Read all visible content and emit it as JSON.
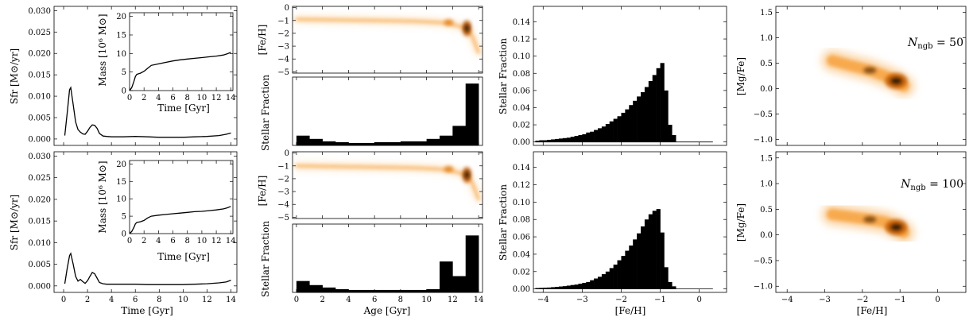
{
  "chart_data": [
    {
      "id": "row1-sfr",
      "type": "line",
      "xlabel": "",
      "ylabel": "Sfr [M⊙/yr]",
      "xlim": [
        -0.8,
        14.5
      ],
      "ylim": [
        -0.0015,
        0.031
      ],
      "xticks": [
        0,
        2,
        4,
        6,
        8,
        10,
        12,
        14
      ],
      "yticks": [
        "0.000",
        "0.005",
        "0.010",
        "0.015",
        "0.020",
        "0.025",
        "0.030"
      ],
      "series": [
        {
          "x": [
            0.1,
            0.3,
            0.5,
            0.6,
            0.8,
            1.0,
            1.2,
            1.4,
            1.6,
            1.8,
            2.0,
            2.2,
            2.4,
            2.6,
            2.8,
            3.0,
            3.3,
            3.6,
            4.0,
            5,
            6,
            7,
            8,
            9,
            10,
            11,
            12,
            13,
            13.6,
            14.0
          ],
          "y": [
            0.0008,
            0.006,
            0.0115,
            0.012,
            0.008,
            0.004,
            0.0022,
            0.0016,
            0.0012,
            0.0011,
            0.0018,
            0.0027,
            0.0033,
            0.0032,
            0.0025,
            0.0013,
            0.0007,
            0.0006,
            0.0005,
            0.0005,
            0.0006,
            0.0005,
            0.0004,
            0.0004,
            0.0004,
            0.0005,
            0.0006,
            0.0008,
            0.0011,
            0.0014
          ]
        }
      ]
    },
    {
      "id": "row1-mass-inset",
      "type": "line",
      "title_note": "Mass [10^6 M⊙]",
      "xlabel": "Time [Gyr]",
      "ylabel": "Mass [10⁶ M⊙]",
      "xlim": [
        0,
        14.3
      ],
      "ylim": [
        0,
        21
      ],
      "xticks": [
        0,
        2,
        4,
        6,
        8,
        10,
        12,
        14
      ],
      "yticks": [
        0,
        5,
        10,
        15,
        20
      ],
      "series": [
        {
          "x": [
            0.0,
            0.3,
            0.6,
            0.8,
            1.0,
            1.5,
            2.0,
            2.5,
            3.0,
            4,
            5,
            6,
            7,
            8,
            9,
            10,
            11,
            12,
            13,
            13.5,
            14.0
          ],
          "y": [
            0.0,
            0.8,
            2.5,
            3.8,
            4.4,
            4.7,
            5.2,
            6.0,
            6.8,
            7.2,
            7.6,
            8.0,
            8.3,
            8.5,
            8.7,
            8.9,
            9.1,
            9.3,
            9.6,
            9.9,
            10.3
          ]
        }
      ]
    },
    {
      "id": "row2-sfr",
      "type": "line",
      "xlabel": "Time [Gyr]",
      "ylabel": "Sfr [M⊙/yr]",
      "xlim": [
        -0.8,
        14.5
      ],
      "ylim": [
        -0.0015,
        0.031
      ],
      "xticks": [
        0,
        2,
        4,
        6,
        8,
        10,
        12,
        14
      ],
      "yticks": [
        "0.000",
        "0.005",
        "0.010",
        "0.015",
        "0.020",
        "0.025",
        "0.030"
      ],
      "series": [
        {
          "x": [
            0.1,
            0.3,
            0.5,
            0.6,
            0.8,
            1.0,
            1.2,
            1.4,
            1.6,
            1.8,
            2.0,
            2.2,
            2.4,
            2.6,
            2.8,
            3.0,
            3.3,
            3.6,
            4.0,
            5,
            6,
            7,
            8,
            9,
            10,
            11,
            12,
            13,
            13.6,
            14.0
          ],
          "y": [
            0.0005,
            0.004,
            0.007,
            0.0075,
            0.005,
            0.0022,
            0.0011,
            0.0015,
            0.001,
            0.0006,
            0.0012,
            0.0022,
            0.0031,
            0.0028,
            0.0018,
            0.0008,
            0.0005,
            0.0004,
            0.0004,
            0.0004,
            0.0004,
            0.0003,
            0.0003,
            0.0003,
            0.0003,
            0.0004,
            0.0005,
            0.0007,
            0.0009,
            0.0013
          ]
        }
      ]
    },
    {
      "id": "row2-mass-inset",
      "type": "line",
      "xlabel": "Time [Gyr]",
      "ylabel": "Mass [10⁶ M⊙]",
      "xlim": [
        0,
        14.3
      ],
      "ylim": [
        0,
        21
      ],
      "xticks": [
        0,
        2,
        4,
        6,
        8,
        10,
        12,
        14
      ],
      "yticks": [
        0,
        5,
        10,
        15,
        20
      ],
      "series": [
        {
          "x": [
            0.0,
            0.3,
            0.6,
            0.8,
            1.0,
            1.5,
            2.0,
            2.5,
            3.0,
            4,
            5,
            6,
            7,
            8,
            9,
            10,
            11,
            12,
            13,
            13.5,
            14.0
          ],
          "y": [
            0.0,
            0.6,
            1.8,
            2.8,
            3.2,
            3.4,
            3.8,
            4.5,
            5.0,
            5.3,
            5.5,
            5.7,
            5.9,
            6.1,
            6.3,
            6.4,
            6.6,
            6.8,
            7.1,
            7.4,
            7.8
          ]
        }
      ]
    },
    {
      "id": "row1-age-feh",
      "type": "heatmap",
      "xlabel": "",
      "ylabel": "[Fe/H]",
      "xlim": [
        -0.3,
        14.3
      ],
      "ylim": [
        -5.1,
        0.1
      ],
      "yticks": [
        0,
        -1,
        -2,
        -3,
        -4,
        -5
      ],
      "xticks": [
        0,
        2,
        4,
        6,
        8,
        10,
        12,
        14
      ],
      "ridge": {
        "x": [
          0,
          3,
          6,
          9,
          11,
          12,
          13,
          13.5,
          14
        ],
        "feh": [
          -0.9,
          -0.95,
          -1.0,
          -1.05,
          -1.15,
          -1.3,
          -1.6,
          -2.2,
          -3.5
        ]
      }
    },
    {
      "id": "row1-age-hist",
      "type": "bar",
      "xlabel": "",
      "ylabel": "Stellar Fraction",
      "xlim": [
        -0.3,
        14.3
      ],
      "ylim": [
        0,
        0.42
      ],
      "xticks": [
        0,
        2,
        4,
        6,
        8,
        10,
        12,
        14
      ],
      "bin_edges": [
        0,
        1,
        2,
        3,
        4,
        5,
        6,
        7,
        8,
        9,
        10,
        11,
        12,
        13,
        14
      ],
      "values": [
        0.06,
        0.04,
        0.025,
        0.02,
        0.015,
        0.015,
        0.02,
        0.02,
        0.025,
        0.025,
        0.04,
        0.06,
        0.12,
        0.38
      ]
    },
    {
      "id": "row2-age-feh",
      "type": "heatmap",
      "xlabel": "",
      "ylabel": "[Fe/H]",
      "xlim": [
        -0.3,
        14.3
      ],
      "ylim": [
        -5.1,
        0.1
      ],
      "yticks": [
        0,
        -1,
        -2,
        -3,
        -4,
        -5
      ],
      "xticks": [
        0,
        2,
        4,
        6,
        8,
        10,
        12,
        14
      ],
      "ridge": {
        "x": [
          0,
          3,
          6,
          9,
          11,
          12,
          13,
          13.5,
          14
        ],
        "feh": [
          -1.0,
          -1.05,
          -1.1,
          -1.15,
          -1.25,
          -1.4,
          -1.7,
          -2.3,
          -3.6
        ]
      }
    },
    {
      "id": "row2-age-hist",
      "type": "bar",
      "xlabel": "Age [Gyr]",
      "ylabel": "Stellar Fraction",
      "xlim": [
        -0.3,
        14.3
      ],
      "ylim": [
        0,
        0.42
      ],
      "xticks": [
        0,
        2,
        4,
        6,
        8,
        10,
        12,
        14
      ],
      "bin_edges": [
        0,
        1,
        2,
        3,
        4,
        5,
        6,
        7,
        8,
        9,
        10,
        11,
        12,
        13,
        14
      ],
      "values": [
        0.07,
        0.045,
        0.03,
        0.02,
        0.015,
        0.015,
        0.015,
        0.015,
        0.015,
        0.015,
        0.02,
        0.19,
        0.1,
        0.35
      ]
    },
    {
      "id": "row1-mdf",
      "type": "bar",
      "xlabel": "",
      "ylabel": "Stellar Fraction",
      "xlim": [
        -4.25,
        0.7
      ],
      "ylim": [
        -0.004,
        0.158
      ],
      "xticks": [
        -4,
        -3,
        -2,
        -1,
        0
      ],
      "yticks": [
        "0.00",
        "0.02",
        "0.04",
        "0.06",
        "0.08",
        "0.10",
        "0.12",
        "0.14"
      ],
      "bin_edges": [
        -4.2,
        -4.1,
        -4.0,
        -3.9,
        -3.8,
        -3.7,
        -3.6,
        -3.5,
        -3.4,
        -3.3,
        -3.2,
        -3.1,
        -3.0,
        -2.9,
        -2.8,
        -2.7,
        -2.6,
        -2.5,
        -2.4,
        -2.3,
        -2.2,
        -2.1,
        -2.0,
        -1.9,
        -1.8,
        -1.7,
        -1.6,
        -1.5,
        -1.4,
        -1.3,
        -1.2,
        -1.1,
        -1.0,
        -0.9,
        -0.8,
        -0.7,
        -0.6
      ],
      "values": [
        0.0015,
        0.002,
        0.002,
        0.0025,
        0.003,
        0.0035,
        0.004,
        0.0045,
        0.005,
        0.006,
        0.007,
        0.008,
        0.009,
        0.011,
        0.012,
        0.014,
        0.016,
        0.018,
        0.021,
        0.024,
        0.027,
        0.03,
        0.034,
        0.038,
        0.043,
        0.048,
        0.053,
        0.058,
        0.064,
        0.071,
        0.078,
        0.086,
        0.092,
        0.06,
        0.02,
        0.008
      ]
    },
    {
      "id": "row2-mdf",
      "type": "bar",
      "xlabel": "[Fe/H]",
      "ylabel": "Stellar Fraction",
      "xlim": [
        -4.25,
        0.7
      ],
      "ylim": [
        -0.004,
        0.158
      ],
      "xticks": [
        -4,
        -3,
        -2,
        -1,
        0
      ],
      "yticks": [
        "0.00",
        "0.02",
        "0.04",
        "0.06",
        "0.08",
        "0.10",
        "0.12",
        "0.14"
      ],
      "bin_edges": [
        -4.2,
        -4.1,
        -4.0,
        -3.9,
        -3.8,
        -3.7,
        -3.6,
        -3.5,
        -3.4,
        -3.3,
        -3.2,
        -3.1,
        -3.0,
        -2.9,
        -2.8,
        -2.7,
        -2.6,
        -2.5,
        -2.4,
        -2.3,
        -2.2,
        -2.1,
        -2.0,
        -1.9,
        -1.8,
        -1.7,
        -1.6,
        -1.5,
        -1.4,
        -1.3,
        -1.2,
        -1.1,
        -1.0,
        -0.9,
        -0.8,
        -0.7,
        -0.6
      ],
      "values": [
        0.001,
        0.0012,
        0.0014,
        0.0016,
        0.002,
        0.0024,
        0.0028,
        0.0032,
        0.0038,
        0.0045,
        0.005,
        0.006,
        0.007,
        0.008,
        0.01,
        0.012,
        0.014,
        0.017,
        0.02,
        0.024,
        0.028,
        0.033,
        0.038,
        0.044,
        0.05,
        0.057,
        0.064,
        0.072,
        0.08,
        0.086,
        0.09,
        0.092,
        0.065,
        0.025,
        0.008,
        0.003
      ]
    },
    {
      "id": "row1-mgfe",
      "type": "heatmap",
      "xlabel": "",
      "ylabel": "[Mg/Fe]",
      "annotation": "Nngb = 50",
      "xlim": [
        -4.3,
        0.75
      ],
      "ylim": [
        -1.12,
        1.62
      ],
      "xticks": [
        -4,
        -3,
        -2,
        -1,
        0
      ],
      "yticks": [
        "−1.0",
        "−0.5",
        "0.0",
        "0.5",
        "1.0",
        "1.5"
      ],
      "ridge": {
        "x": [
          -2.8,
          -2.3,
          -1.8,
          -1.4,
          -1.1,
          -0.9
        ],
        "y": [
          0.55,
          0.45,
          0.36,
          0.25,
          0.15,
          0.05
        ]
      }
    },
    {
      "id": "row2-mgfe",
      "type": "heatmap",
      "xlabel": "[Fe/H]",
      "ylabel": "[Mg/Fe]",
      "annotation": "Nngb = 100",
      "xlim": [
        -4.3,
        0.75
      ],
      "ylim": [
        -1.12,
        1.62
      ],
      "xticks": [
        -4,
        -3,
        -2,
        -1,
        0
      ],
      "yticks": [
        "−1.0",
        "−0.5",
        "0.0",
        "0.5",
        "1.0",
        "1.5"
      ],
      "ridge": {
        "x": [
          -2.8,
          -2.3,
          -1.8,
          -1.4,
          -1.1,
          -0.9
        ],
        "y": [
          0.4,
          0.35,
          0.3,
          0.25,
          0.15,
          0.05
        ]
      }
    }
  ],
  "annotations": {
    "row1_label_main": "N",
    "row1_label_sub": "ngb",
    "row1_label_val": " = 50",
    "row2_label_main": "N",
    "row2_label_sub": "ngb",
    "row2_label_val": " = 100"
  },
  "colors": {
    "line": "#000000",
    "bar": "#000000",
    "heat_low": "#fff3e0",
    "heat_mid": "#f7a23c",
    "heat_high": "#1a0a00"
  }
}
